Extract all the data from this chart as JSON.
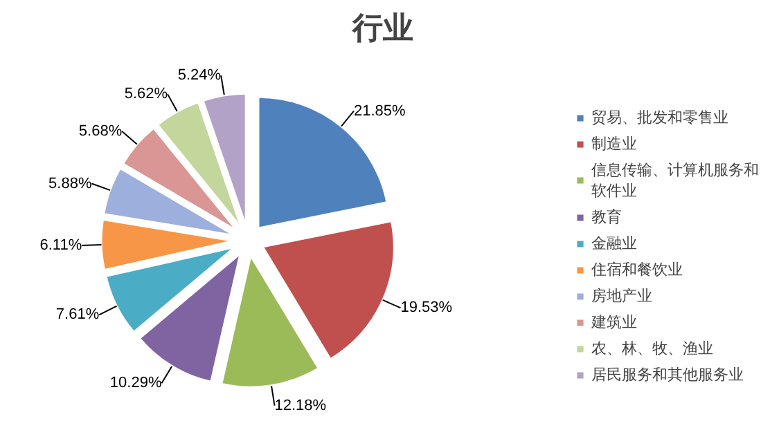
{
  "chart_data": {
    "type": "pie",
    "title": "行业",
    "categories": [
      "贸易、批发和零售业",
      "制造业",
      "信息传输、计算机服务和软件业",
      "教育",
      "金融业",
      "住宿和餐饮业",
      "房地产业",
      "建筑业",
      "农、林、牧、渔业",
      "居民服务和其他服务业"
    ],
    "values": [
      21.85,
      19.53,
      12.18,
      10.29,
      7.61,
      6.11,
      5.88,
      5.68,
      5.62,
      5.24
    ],
    "value_labels": [
      "21.85%",
      "19.53%",
      "12.18%",
      "10.29%",
      "7.61%",
      "6.11%",
      "5.88%",
      "5.68%",
      "5.62%",
      "5.24%"
    ],
    "colors": [
      "#4f81bd",
      "#c0504d",
      "#9bbb59",
      "#8064a2",
      "#4bacc6",
      "#f79646",
      "#9dafdc",
      "#d99694",
      "#c3d69b",
      "#b3a2c7"
    ],
    "legend": "right"
  }
}
